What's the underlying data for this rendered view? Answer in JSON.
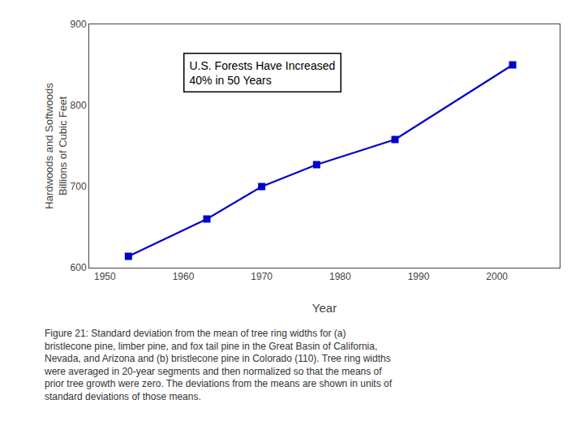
{
  "chart_data": {
    "type": "line",
    "x": [
      1953,
      1963,
      1970,
      1977,
      1987,
      2002
    ],
    "values": [
      614,
      660,
      700,
      727,
      758,
      850
    ],
    "color": "#0000CC",
    "marker": "square",
    "line_style": "solid",
    "xlabel": "Year",
    "ylabel": "Hardwoods and Softwoods\nBillions of Cubic Feet",
    "xlim": [
      1948,
      2008
    ],
    "ylim": [
      600,
      900
    ],
    "xticks": [
      1950,
      1960,
      1970,
      1980,
      1990,
      2000
    ],
    "yticks": [
      600,
      700,
      800,
      900
    ],
    "grid": false,
    "annotations": [
      "U.S. Forests Have Increased\n40% in 50 Years"
    ],
    "caption": [
      "Figure 21: Standard deviation from the mean of tree ring widths for (a)",
      "bristlecone pine, limber pine, and fox tail pine in the Great Basin of California,",
      "Nevada, and Arizona and (b) bristlecone pine in Colorado (110). Tree ring widths",
      "were averaged in 20-year segments and then normalized so that the means of",
      "prior tree growth were zero. The deviations from the means are shown in units of",
      "standard deviations of those means."
    ]
  }
}
